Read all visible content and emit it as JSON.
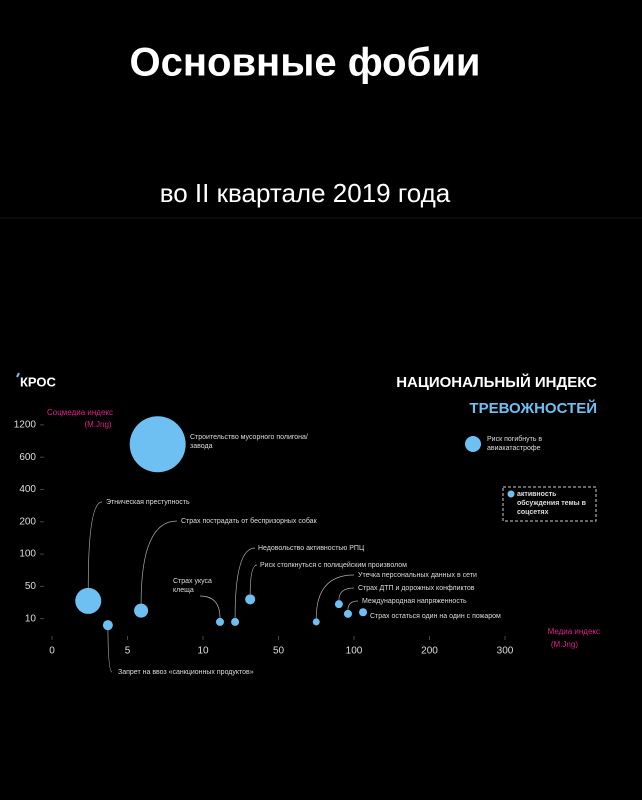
{
  "chart_data": {
    "type": "bubble",
    "title": "Основные фобии",
    "subtitle": "во II квартале 2019 года",
    "brand": "КРОС",
    "index_title": [
      "НАЦИОНАЛЬНЫЙ ИНДЕКС",
      "ТРЕВОЖНОСТЕЙ"
    ],
    "y_label": [
      "Соцмедиа индекс",
      "(M.Jng)"
    ],
    "x_label": [
      "Медиа индекс",
      "(M.Jng)"
    ],
    "legend_bubble": "Риск погибнуть в авиакатастрофе",
    "legend_size": "активность обсуждения темы в соцсетях",
    "color": "#6ec0f2",
    "categories": [
      "Строительство мусорного полигона/завода",
      "Этническая преступность",
      "Страх пострадать от беспризорных собак",
      "Запрет на ввоз «санкционных продуктов»",
      "Страх укуса клеща",
      "Недовольство активностью РПЦ",
      "Риск столкнуться с полицейским произволом",
      "Утечка персональных данных в сети",
      "Страх ДТП и дорожных конфликтов",
      "Международная напряженность",
      "Страх остаться один на один с пожаром"
    ],
    "x": [
      7,
      2.4,
      5.9,
      3.7,
      19,
      27,
      35,
      75,
      90,
      96,
      112
    ],
    "values": [
      840,
      32,
      20,
      8,
      9,
      9,
      34,
      9,
      28,
      16,
      18
    ],
    "sizes": [
      28,
      13,
      7,
      5,
      4,
      4,
      5,
      3.5,
      4,
      4,
      4
    ],
    "xlim": [
      0,
      300
    ],
    "xticks": [
      0,
      5,
      10,
      50,
      100,
      200,
      300
    ],
    "ylim": [
      0,
      1200
    ],
    "yticks": [
      10,
      50,
      100,
      200,
      400,
      600,
      1200
    ]
  }
}
